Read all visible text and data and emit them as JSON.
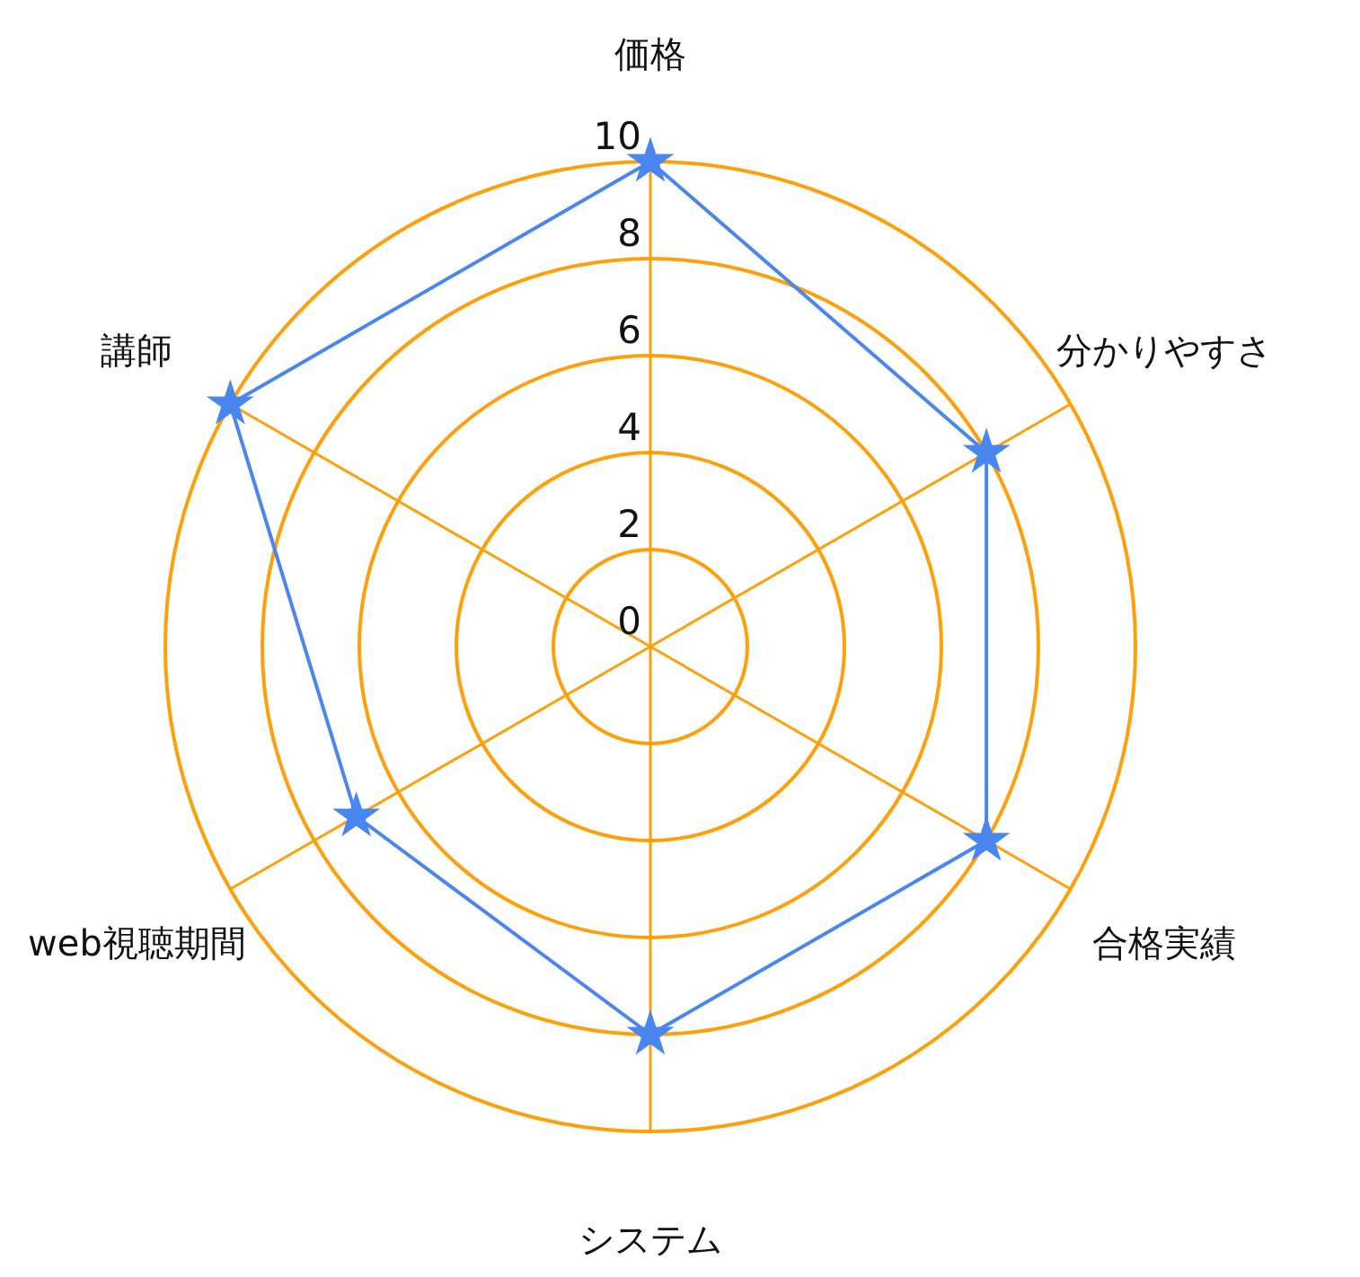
{
  "chart_data": {
    "type": "radar",
    "categories": [
      "価格",
      "分かりやすさ",
      "合格実績",
      "システム",
      "web視聴期間",
      "講師"
    ],
    "series": [
      {
        "color": "#4a86f0",
        "values": [
          10,
          8,
          8,
          8,
          7,
          10
        ]
      }
    ],
    "ylim": [
      0,
      10
    ],
    "yticks": [
      0,
      2,
      4,
      6,
      8,
      10
    ],
    "grid": true,
    "marker": "star"
  }
}
